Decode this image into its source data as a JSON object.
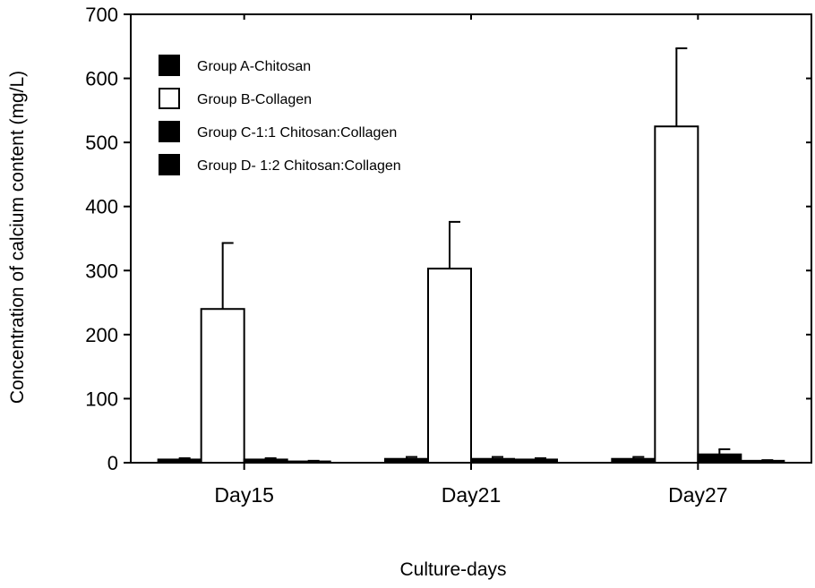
{
  "chart_data": {
    "type": "bar",
    "title": "",
    "xlabel": "Culture-days",
    "ylabel": "Concentration of calcium content (mg/L)",
    "ylim": [
      0,
      700
    ],
    "yticks": [
      0,
      100,
      200,
      300,
      400,
      500,
      600,
      700
    ],
    "categories": [
      "Day15",
      "Day21",
      "Day27"
    ],
    "series": [
      {
        "name": "Group A-Chitosan",
        "values": [
          5,
          6,
          6
        ],
        "errors": [
          2,
          3,
          3
        ],
        "fill": "#000000"
      },
      {
        "name": "Group B-Collagen",
        "values": [
          240,
          303,
          525
        ],
        "errors": [
          103,
          73,
          122
        ],
        "fill": "#ffffff"
      },
      {
        "name": "Group C-1:1 Chitosan:Collagen",
        "values": [
          5,
          6,
          13
        ],
        "errors": [
          2,
          3,
          8
        ],
        "fill": "#000000"
      },
      {
        "name": "Group D- 1:2 Chitosan:Collagen",
        "values": [
          2,
          5,
          3
        ],
        "errors": [
          1,
          2,
          1
        ],
        "fill": "#000000"
      }
    ],
    "grid": false,
    "legend_position": "top-left"
  }
}
